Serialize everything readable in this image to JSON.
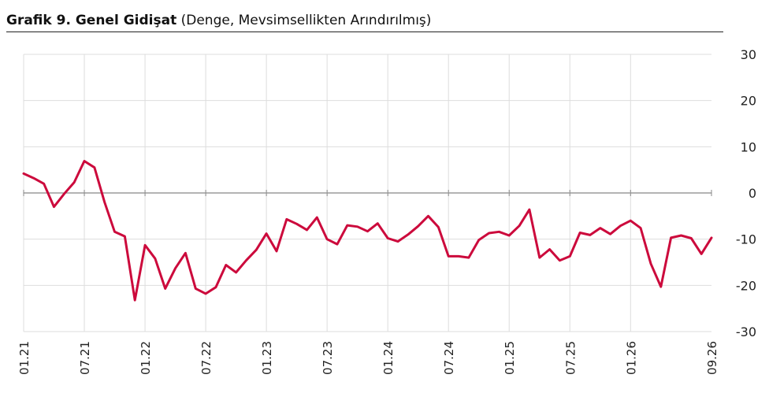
{
  "header": {
    "title_bold": "Grafik 9. Genel Gidişat",
    "title_rest": "(Denge, Mevsimsellikten Arındırılmış)"
  },
  "colors": {
    "line": "#cc0a3c",
    "grid": "#dddddd",
    "zero": "#888888"
  },
  "chart_data": {
    "type": "line",
    "title": "Grafik 9. Genel Gidişat (Denge, Mevsimsellikten Arındırılmış)",
    "ylim": [
      -30,
      30
    ],
    "yticks": [
      30,
      20,
      10,
      0,
      -10,
      -20,
      -30
    ],
    "grid": true,
    "y_axis_position": "right",
    "xtick_labels": [
      "01.21",
      "07.21",
      "01.22",
      "07.22",
      "01.23",
      "07.23",
      "01.24",
      "07.24",
      "01.25",
      "07.25",
      "01.26",
      "09.26"
    ],
    "series": [
      {
        "values": [
          4.2,
          3.2,
          2.0,
          -3.0,
          -0.2,
          2.3,
          6.9,
          5.5,
          -2.0,
          -8.4,
          -9.4,
          -23.2,
          -11.3,
          -14.2,
          -20.7,
          -16.3,
          -13.0,
          -20.7,
          -21.8,
          -20.4,
          -15.6,
          -17.2,
          -14.6,
          -12.3,
          -8.8,
          -12.6,
          -5.7,
          -6.7,
          -8.0,
          -5.3,
          -10.0,
          -11.1,
          -7.0,
          -7.3,
          -8.3,
          -6.6,
          -9.8,
          -10.5,
          -9.0,
          -7.2,
          -5.0,
          -7.4,
          -13.7,
          -13.7,
          -14.0,
          -10.2,
          -8.7,
          -8.4,
          -9.2,
          -7.1,
          -3.6,
          -14.0,
          -12.2,
          -14.6,
          -13.7,
          -8.6,
          -9.1,
          -7.6,
          -8.9,
          -7.1,
          -6.0,
          -7.6,
          -15.3,
          -20.3,
          -9.7,
          -9.2,
          -9.8,
          -13.2,
          -9.7
        ],
        "color": "#cc0a3c"
      }
    ]
  }
}
